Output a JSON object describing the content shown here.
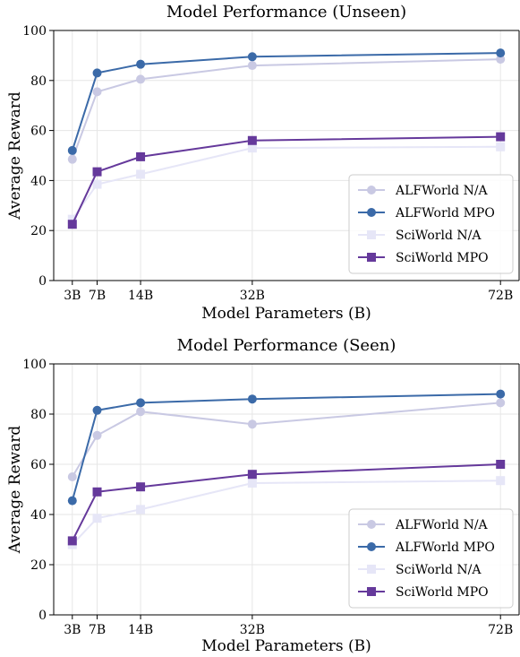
{
  "chart_data": [
    {
      "type": "line",
      "title": "Model Performance (Unseen)",
      "xlabel": "Model Parameters (B)",
      "ylabel": "Average Reward",
      "x": [
        3,
        7,
        14,
        32,
        72
      ],
      "x_tick_labels": [
        "3B",
        "7B",
        "14B",
        "32B",
        "72B"
      ],
      "xlim": [
        0,
        75
      ],
      "ylim": [
        0,
        100
      ],
      "y_ticks": [
        0,
        20,
        40,
        60,
        80,
        100
      ],
      "grid": true,
      "legend_position": "lower-right",
      "series": [
        {
          "name": "ALFWorld N/A",
          "values": [
            48.5,
            75.5,
            80.5,
            86.0,
            88.5
          ],
          "color": "#c9c9e3",
          "marker": "circle"
        },
        {
          "name": "ALFWorld MPO",
          "values": [
            52.0,
            83.0,
            86.5,
            89.5,
            91.0
          ],
          "color": "#3b6aa8",
          "marker": "circle"
        },
        {
          "name": "SciWorld N/A",
          "values": [
            24.5,
            38.5,
            42.5,
            53.0,
            53.5
          ],
          "color": "#e6e6f7",
          "marker": "square"
        },
        {
          "name": "SciWorld MPO",
          "values": [
            22.5,
            43.5,
            49.5,
            56.0,
            57.5
          ],
          "color": "#65399b",
          "marker": "square"
        }
      ]
    },
    {
      "type": "line",
      "title": "Model Performance (Seen)",
      "xlabel": "Model Parameters (B)",
      "ylabel": "Average Reward",
      "x": [
        3,
        7,
        14,
        32,
        72
      ],
      "x_tick_labels": [
        "3B",
        "7B",
        "14B",
        "32B",
        "72B"
      ],
      "xlim": [
        0,
        75
      ],
      "ylim": [
        0,
        100
      ],
      "y_ticks": [
        0,
        20,
        40,
        60,
        80,
        100
      ],
      "grid": true,
      "legend_position": "lower-right",
      "series": [
        {
          "name": "ALFWorld N/A",
          "values": [
            55.0,
            71.5,
            81.0,
            76.0,
            84.5
          ],
          "color": "#c9c9e3",
          "marker": "circle"
        },
        {
          "name": "ALFWorld MPO",
          "values": [
            45.5,
            81.5,
            84.5,
            86.0,
            88.0
          ],
          "color": "#3b6aa8",
          "marker": "circle"
        },
        {
          "name": "SciWorld N/A",
          "values": [
            28.0,
            38.5,
            42.0,
            52.5,
            53.5
          ],
          "color": "#e6e6f7",
          "marker": "square"
        },
        {
          "name": "SciWorld MPO",
          "values": [
            29.5,
            49.0,
            51.0,
            56.0,
            60.0
          ],
          "color": "#65399b",
          "marker": "square"
        }
      ]
    }
  ]
}
